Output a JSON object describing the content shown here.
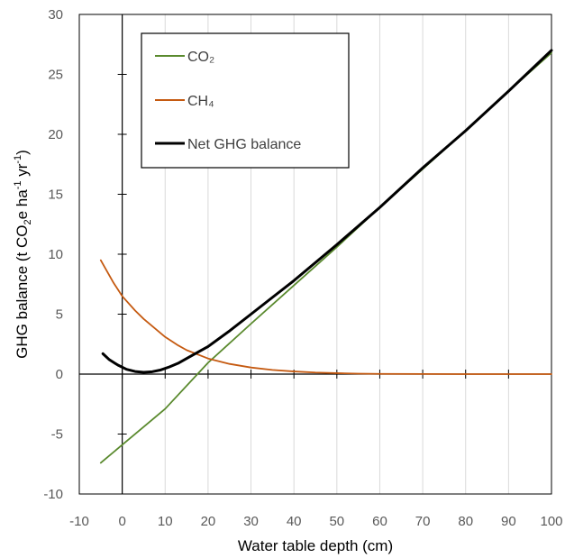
{
  "chart_data": {
    "type": "line",
    "xlabel": "Water table depth (cm)",
    "ylabel_parts": {
      "main": "GHG balance (t CO",
      "sub": "2",
      "mid": "e ha",
      "sup1": "-1",
      "mid2": " yr",
      "sup2": "-1",
      "end": ")"
    },
    "xlim": [
      -10,
      100
    ],
    "ylim": [
      -10,
      30
    ],
    "x_ticks": [
      -10,
      0,
      10,
      20,
      30,
      40,
      50,
      60,
      70,
      80,
      90,
      100
    ],
    "y_ticks": [
      -10,
      -5,
      0,
      5,
      10,
      15,
      20,
      25,
      30
    ],
    "grid": "vertical",
    "legend_position": "top-left",
    "series": [
      {
        "name": "CO₂",
        "color": "#5a8a2e",
        "x": [
          -5,
          0,
          10,
          20,
          30,
          40,
          50,
          60,
          70,
          80,
          90,
          100
        ],
        "y": [
          -7.4,
          -5.9,
          -2.9,
          0.95,
          4.2,
          7.4,
          10.6,
          13.9,
          17.1,
          20.3,
          23.6,
          26.8
        ]
      },
      {
        "name": "CH₄",
        "color": "#c55a11",
        "x": [
          -5,
          -2,
          0,
          3,
          5,
          8,
          10,
          13,
          15,
          20,
          25,
          30,
          35,
          40,
          45,
          50,
          55,
          60,
          70,
          80,
          90,
          100
        ],
        "y": [
          9.5,
          7.6,
          6.5,
          5.3,
          4.6,
          3.7,
          3.1,
          2.4,
          2.0,
          1.3,
          0.85,
          0.55,
          0.35,
          0.22,
          0.13,
          0.08,
          0.04,
          0.02,
          0.01,
          0.0,
          0.0,
          0.0
        ]
      },
      {
        "name": "Net GHG balance",
        "color": "#000000",
        "x": [
          -4.5,
          -3,
          -1,
          1,
          3,
          5,
          7,
          9,
          11,
          13,
          15,
          18,
          20,
          25,
          30,
          35,
          40,
          50,
          60,
          70,
          80,
          90,
          100
        ],
        "y": [
          1.7,
          1.2,
          0.75,
          0.4,
          0.22,
          0.15,
          0.2,
          0.35,
          0.6,
          0.9,
          1.3,
          1.9,
          2.3,
          3.6,
          5.0,
          6.4,
          7.8,
          10.8,
          13.9,
          17.2,
          20.3,
          23.6,
          27.0
        ]
      }
    ]
  }
}
